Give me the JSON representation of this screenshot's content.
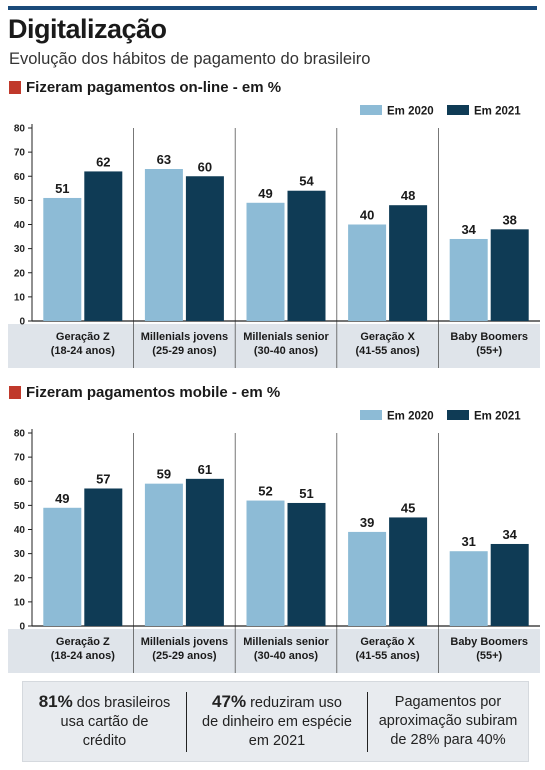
{
  "header": {
    "title": "Digitalização",
    "subtitle": "Evolução dos hábitos de pagamento do brasileiro"
  },
  "colors": {
    "2020": "#8dbbd6",
    "2021": "#0f3b55",
    "accent": "#c0392b",
    "band": "#dfe4ea"
  },
  "chart_data": [
    {
      "type": "bar",
      "title": "Fizeram pagamentos on-line - em %",
      "categories": [
        [
          "Geração Z",
          "(18-24 anos)"
        ],
        [
          "Millenials jovens",
          "(25-29 anos)"
        ],
        [
          "Millenials senior",
          "(30-40 anos)"
        ],
        [
          "Geração X",
          "(41-55 anos)"
        ],
        [
          "Baby Boomers",
          "(55+)"
        ]
      ],
      "series": [
        {
          "name": "Em 2020",
          "values": [
            51,
            63,
            49,
            40,
            34
          ]
        },
        {
          "name": "Em 2021",
          "values": [
            62,
            60,
            54,
            48,
            38
          ]
        }
      ],
      "ylim": [
        0,
        80
      ],
      "yticks": [
        0,
        10,
        20,
        30,
        40,
        50,
        60,
        70,
        80
      ],
      "grid": false,
      "legend": "top-right"
    },
    {
      "type": "bar",
      "title": "Fizeram pagamentos mobile - em %",
      "categories": [
        [
          "Geração Z",
          "(18-24 anos)"
        ],
        [
          "Millenials jovens",
          "(25-29 anos)"
        ],
        [
          "Millenials senior",
          "(30-40 anos)"
        ],
        [
          "Geração X",
          "(41-55 anos)"
        ],
        [
          "Baby Boomers",
          "(55+)"
        ]
      ],
      "series": [
        {
          "name": "Em 2020",
          "values": [
            49,
            59,
            52,
            39,
            31
          ]
        },
        {
          "name": "Em 2021",
          "values": [
            57,
            61,
            51,
            45,
            34
          ]
        }
      ],
      "ylim": [
        0,
        80
      ],
      "yticks": [
        0,
        10,
        20,
        30,
        40,
        50,
        60,
        70,
        80
      ],
      "grid": false,
      "legend": "top-right"
    }
  ],
  "footer": [
    {
      "highlight": "81%",
      "text_lines": [
        " dos brasileiros",
        "usa cartão de",
        "crédito"
      ]
    },
    {
      "highlight": "47%",
      "text_lines": [
        " reduziram uso",
        "de dinheiro em espécie",
        "em 2021"
      ]
    },
    {
      "highlight": "",
      "text_lines": [
        "Pagamentos por",
        "aproximação subiram",
        "de 28% para 40%"
      ]
    }
  ]
}
